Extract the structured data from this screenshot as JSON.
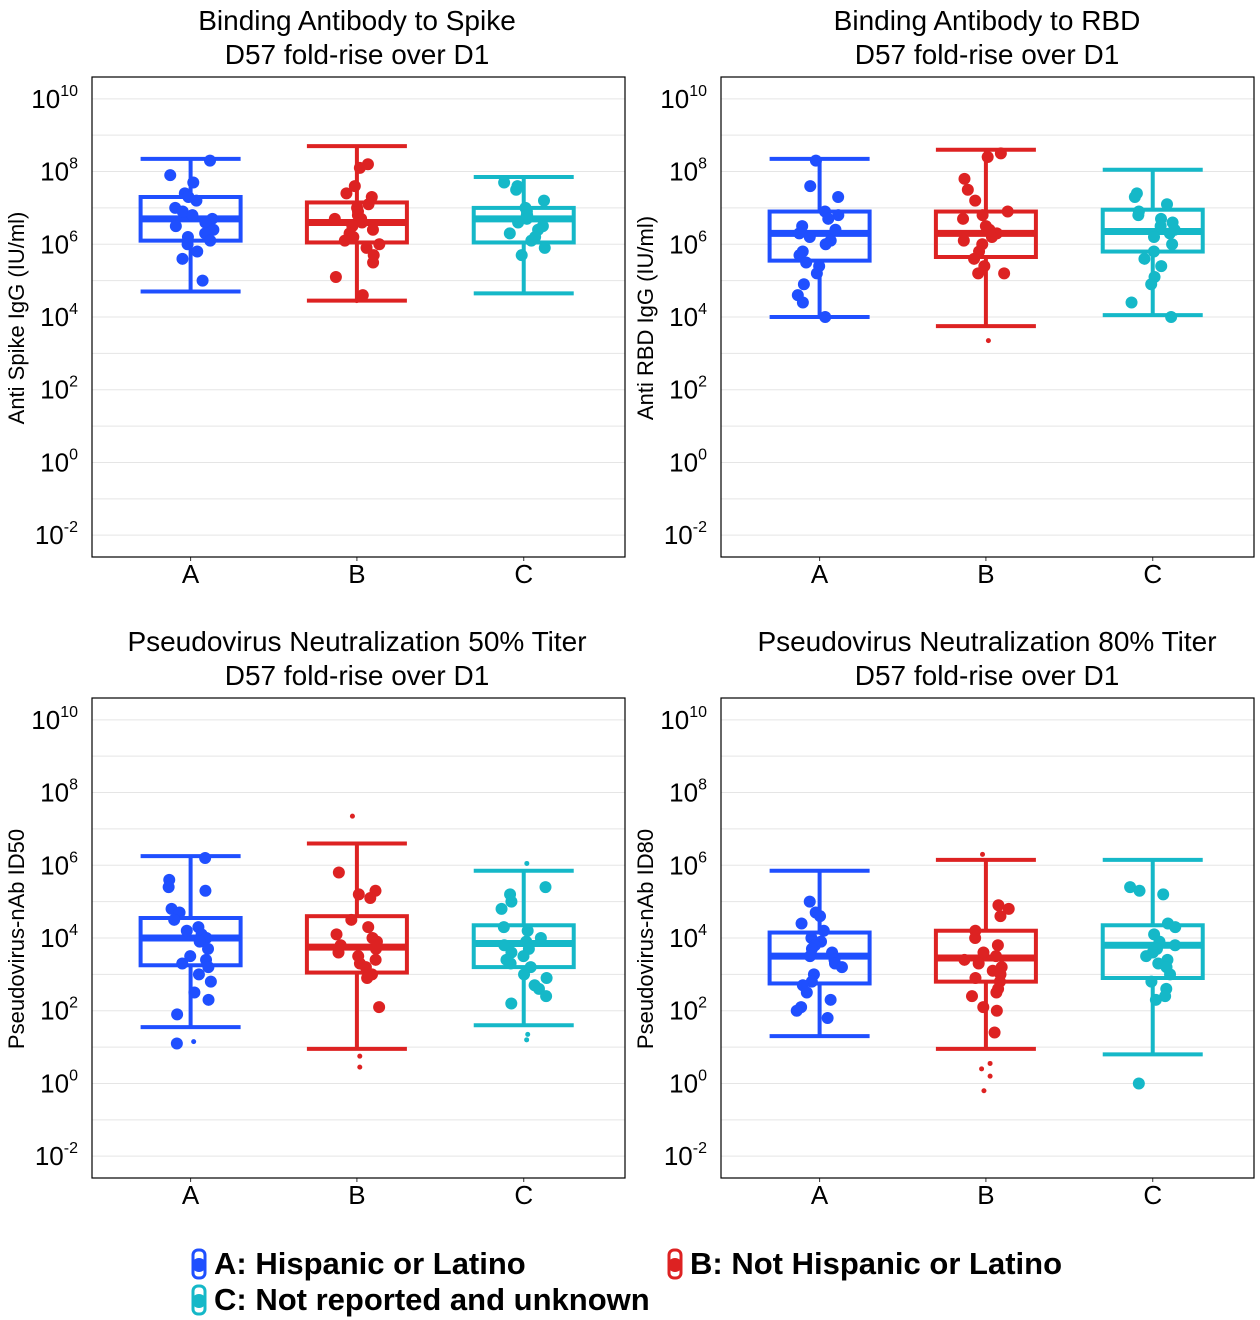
{
  "chart_data": [
    {
      "type": "box",
      "title": [
        "Binding Antibody to Spike",
        "D57 fold-rise over D1"
      ],
      "ylabel": "Anti Spike IgG (IU/ml)",
      "yscale": "log10",
      "ylim_log10": [
        -2.6,
        10.6
      ],
      "yticks_log10": [
        -2,
        0,
        2,
        4,
        6,
        8,
        10
      ],
      "grid": true,
      "categories": [
        "A",
        "B",
        "C"
      ],
      "boxes": [
        {
          "cat": "A",
          "whisker_low": 4.7,
          "q1": 6.1,
          "median": 6.7,
          "q3": 7.3,
          "whisker_high": 8.35
        },
        {
          "cat": "B",
          "whisker_low": 4.45,
          "q1": 6.05,
          "median": 6.6,
          "q3": 7.15,
          "whisker_high": 8.7
        },
        {
          "cat": "C",
          "whisker_low": 4.65,
          "q1": 6.05,
          "median": 6.7,
          "q3": 7.0,
          "whisker_high": 7.85
        }
      ],
      "points": {
        "A": [
          8.3,
          7.9,
          7.7,
          7.4,
          7.3,
          7.2,
          7.0,
          6.9,
          6.8,
          6.7,
          6.6,
          6.5,
          6.4,
          6.3,
          6.2,
          6.1,
          6.0,
          5.8,
          5.6,
          5.0
        ],
        "B": [
          8.2,
          8.1,
          7.6,
          7.4,
          7.3,
          7.1,
          7.0,
          6.9,
          6.8,
          6.7,
          6.7,
          6.6,
          6.5,
          6.4,
          6.3,
          6.2,
          6.1,
          6.0,
          5.9,
          5.7,
          5.5,
          5.1,
          4.6
        ],
        "C": [
          7.7,
          7.6,
          7.5,
          7.2,
          7.0,
          6.9,
          6.8,
          6.8,
          6.7,
          6.6,
          6.5,
          6.4,
          6.3,
          6.2,
          6.1,
          5.9,
          5.7
        ]
      },
      "outliers": {
        "A": [],
        "B": [
          4.45
        ],
        "C": []
      }
    },
    {
      "type": "box",
      "title": [
        "Binding Antibody to RBD",
        "D57 fold-rise over D1"
      ],
      "ylabel": "Anti RBD IgG (IU/ml)",
      "yscale": "log10",
      "ylim_log10": [
        -2.6,
        10.6
      ],
      "yticks_log10": [
        -2,
        0,
        2,
        4,
        6,
        8,
        10
      ],
      "grid": true,
      "categories": [
        "A",
        "B",
        "C"
      ],
      "boxes": [
        {
          "cat": "A",
          "whisker_low": 4.0,
          "q1": 5.55,
          "median": 6.3,
          "q3": 6.9,
          "whisker_high": 8.35
        },
        {
          "cat": "B",
          "whisker_low": 3.75,
          "q1": 5.65,
          "median": 6.3,
          "q3": 6.9,
          "whisker_high": 8.6
        },
        {
          "cat": "C",
          "whisker_low": 4.05,
          "q1": 5.8,
          "median": 6.35,
          "q3": 6.95,
          "whisker_high": 8.05
        }
      ],
      "points": {
        "A": [
          8.3,
          7.6,
          7.3,
          6.9,
          6.8,
          6.7,
          6.5,
          6.4,
          6.3,
          6.2,
          6.1,
          6.0,
          5.8,
          5.7,
          5.5,
          5.4,
          5.2,
          4.9,
          4.6,
          4.4,
          4.0
        ],
        "B": [
          8.5,
          8.4,
          7.8,
          7.5,
          7.2,
          6.9,
          6.8,
          6.7,
          6.5,
          6.4,
          6.3,
          6.2,
          6.1,
          6.0,
          5.8,
          5.6,
          5.4,
          5.2,
          5.2
        ],
        "C": [
          7.4,
          7.3,
          7.1,
          6.9,
          6.8,
          6.7,
          6.6,
          6.5,
          6.4,
          6.3,
          6.2,
          6.0,
          5.8,
          5.6,
          5.4,
          5.1,
          4.9,
          4.4,
          4.0
        ]
      },
      "outliers": {
        "A": [],
        "B": [
          3.35
        ],
        "C": []
      }
    },
    {
      "type": "box",
      "title": [
        "Pseudovirus Neutralization 50% Titer",
        "D57 fold-rise over D1"
      ],
      "ylabel": "Pseudovirus-nAb ID50",
      "yscale": "log10",
      "ylim_log10": [
        -2.6,
        10.6
      ],
      "yticks_log10": [
        -2,
        0,
        2,
        4,
        6,
        8,
        10
      ],
      "grid": true,
      "categories": [
        "A",
        "B",
        "C"
      ],
      "boxes": [
        {
          "cat": "A",
          "whisker_low": 1.55,
          "q1": 3.25,
          "median": 4.0,
          "q3": 4.55,
          "whisker_high": 6.25
        },
        {
          "cat": "B",
          "whisker_low": 0.95,
          "q1": 3.05,
          "median": 3.75,
          "q3": 4.6,
          "whisker_high": 6.6
        },
        {
          "cat": "C",
          "whisker_low": 1.6,
          "q1": 3.2,
          "median": 3.85,
          "q3": 4.35,
          "whisker_high": 5.85
        }
      ],
      "points": {
        "A": [
          6.2,
          5.6,
          5.4,
          5.3,
          4.8,
          4.7,
          4.5,
          4.3,
          4.2,
          4.1,
          4.0,
          3.9,
          3.7,
          3.5,
          3.4,
          3.3,
          3.2,
          3.0,
          2.8,
          2.5,
          2.3,
          1.9,
          1.1
        ],
        "B": [
          5.8,
          5.3,
          5.2,
          5.1,
          4.5,
          4.3,
          4.1,
          4.0,
          3.9,
          3.8,
          3.7,
          3.6,
          3.5,
          3.4,
          3.3,
          3.2,
          3.0,
          2.9,
          2.1
        ],
        "C": [
          5.4,
          5.2,
          5.0,
          4.8,
          4.3,
          4.2,
          4.0,
          3.9,
          3.8,
          3.7,
          3.6,
          3.5,
          3.4,
          3.3,
          3.2,
          3.0,
          2.9,
          2.7,
          2.6,
          2.4,
          2.2
        ]
      },
      "outliers": {
        "A": [
          1.15
        ],
        "B": [
          0.75,
          0.45,
          7.35
        ],
        "C": [
          1.35,
          1.2,
          6.05
        ]
      }
    },
    {
      "type": "box",
      "title": [
        "Pseudovirus Neutralization 80% Titer",
        "D57 fold-rise over D1"
      ],
      "ylabel": "Pseudovirus-nAb ID80",
      "yscale": "log10",
      "ylim_log10": [
        -2.6,
        10.6
      ],
      "yticks_log10": [
        -2,
        0,
        2,
        4,
        6,
        8,
        10
      ],
      "grid": true,
      "categories": [
        "A",
        "B",
        "C"
      ],
      "boxes": [
        {
          "cat": "A",
          "whisker_low": 1.3,
          "q1": 2.75,
          "median": 3.5,
          "q3": 4.15,
          "whisker_high": 5.85
        },
        {
          "cat": "B",
          "whisker_low": 0.95,
          "q1": 2.8,
          "median": 3.45,
          "q3": 4.2,
          "whisker_high": 6.15
        },
        {
          "cat": "C",
          "whisker_low": 0.8,
          "q1": 2.9,
          "median": 3.8,
          "q3": 4.35,
          "whisker_high": 6.15
        }
      ],
      "points": {
        "A": [
          5.0,
          4.7,
          4.6,
          4.4,
          4.2,
          4.0,
          3.9,
          3.8,
          3.7,
          3.6,
          3.5,
          3.4,
          3.3,
          3.2,
          3.0,
          2.8,
          2.7,
          2.5,
          2.3,
          2.1,
          2.0,
          1.8
        ],
        "B": [
          4.9,
          4.8,
          4.6,
          4.2,
          4.0,
          3.8,
          3.6,
          3.5,
          3.4,
          3.3,
          3.2,
          3.1,
          3.0,
          2.9,
          2.8,
          2.6,
          2.5,
          2.4,
          2.1,
          2.0,
          1.4
        ],
        "C": [
          5.4,
          5.3,
          5.2,
          4.4,
          4.3,
          4.1,
          3.9,
          3.8,
          3.7,
          3.6,
          3.5,
          3.4,
          3.3,
          3.2,
          3.0,
          2.8,
          2.6,
          2.4,
          2.3,
          0.0
        ]
      },
      "outliers": {
        "A": [],
        "B": [
          0.55,
          0.4,
          0.2,
          -0.2,
          6.3
        ],
        "C": []
      }
    }
  ],
  "colors": {
    "A": "#1f4fff",
    "B": "#dd2222",
    "C": "#15b8c8",
    "grid": "#e5e5e5",
    "frame": "#000000"
  },
  "legend": {
    "position": "bottom",
    "items": [
      {
        "key": "A",
        "label": "A: Hispanic or Latino"
      },
      {
        "key": "B",
        "label": "B: Not Hispanic or Latino"
      },
      {
        "key": "C",
        "label": "C: Not reported and unknown"
      }
    ]
  }
}
